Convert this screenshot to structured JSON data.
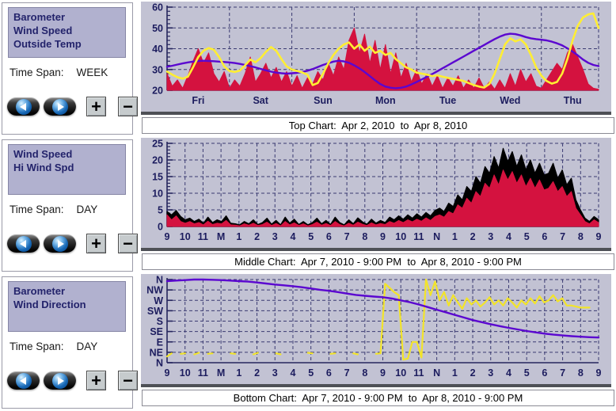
{
  "colors": {
    "chart_bg": "#c2c2d3",
    "axis": "#26265e",
    "grid": "#3b3b72",
    "tick_text": "#1c1c5e",
    "barometer_purple": "#5b07d0",
    "outside_temp_yellow": "#ffee33",
    "wind_speed_red": "#d4123f",
    "hi_wind_black": "#000000",
    "wind_dir_yellow": "#f2e42a",
    "legend_bg": "#b1b1cf"
  },
  "controls": {
    "zoom_in_label": "+",
    "zoom_out_label": "−"
  },
  "panels": [
    {
      "legend": [
        "Barometer",
        "Wind Speed",
        "Outside Temp"
      ],
      "time_span_label": "Time Span:",
      "time_span_value": "WEEK"
    },
    {
      "legend": [
        "Wind Speed",
        "Hi Wind Spd"
      ],
      "time_span_label": "Time Span:",
      "time_span_value": "DAY"
    },
    {
      "legend": [
        "Barometer",
        "Wind Direction"
      ],
      "time_span_label": "Time Span:",
      "time_span_value": "DAY"
    }
  ],
  "chart_data": [
    {
      "type": "line",
      "caption": "Top Chart:  Apr 2, 2010  to  Apr 8, 2010",
      "xlim": [
        0,
        166
      ],
      "ylim": [
        20,
        60
      ],
      "y_minor_step": 2,
      "yticks": [
        {
          "v": 20,
          "label": "20"
        },
        {
          "v": 30,
          "label": "30"
        },
        {
          "v": 40,
          "label": "40"
        },
        {
          "v": 50,
          "label": "50"
        },
        {
          "v": 60,
          "label": "60"
        }
      ],
      "xticks": [
        {
          "v": 12,
          "label": "Fri"
        },
        {
          "v": 36,
          "label": "Sat"
        },
        {
          "v": 60,
          "label": "Sun"
        },
        {
          "v": 84,
          "label": "Mon"
        },
        {
          "v": 108,
          "label": "Tue"
        },
        {
          "v": 132,
          "label": "Wed"
        },
        {
          "v": 156,
          "label": "Thu"
        }
      ],
      "vgrid": [
        24,
        48,
        72,
        96,
        120,
        144,
        166
      ],
      "series": [
        {
          "name": "Wind Speed",
          "color": "#d4123f",
          "fill": true,
          "width": 1,
          "values": [
            28,
            22,
            25,
            21,
            27,
            34,
            40,
            33,
            38,
            28,
            24,
            29,
            21,
            25,
            22,
            28,
            36,
            24,
            28,
            33,
            26,
            31,
            24,
            29,
            22,
            27,
            21,
            26,
            23,
            29,
            25,
            33,
            27,
            36,
            30,
            44,
            50,
            38,
            47,
            33,
            44,
            30,
            42,
            28,
            38,
            26,
            33,
            24,
            30,
            23,
            28,
            22,
            27,
            21,
            26,
            22,
            27,
            21,
            25,
            21,
            26,
            21,
            24,
            20.5,
            25,
            21,
            28,
            22,
            30,
            24,
            28,
            22,
            21,
            25,
            29,
            33,
            30,
            38,
            42,
            36,
            30,
            23,
            21,
            20.5
          ]
        },
        {
          "name": "Barometer",
          "color": "#5b07d0",
          "fill": false,
          "width": 2.4,
          "values": [
            31.3,
            31.8,
            32.4,
            32.9,
            33.4,
            33.8,
            34.1,
            34.2,
            34.1,
            34.0,
            33.8,
            33.6,
            33.4,
            33.1,
            32.7,
            32.2,
            31.6,
            31.0,
            30.3,
            29.6,
            29.0,
            28.5,
            28.2,
            28.0,
            28.2,
            28.4,
            28.8,
            29.4,
            30.2,
            31.2,
            32.2,
            33.0,
            33.8,
            34.2,
            33.9,
            33.2,
            32.0,
            30.5,
            28.8,
            26.8,
            24.8,
            23.0,
            21.8,
            21.2,
            21.0,
            21.2,
            21.8,
            22.8,
            24.0,
            25.2,
            26.5,
            27.8,
            29.2,
            30.6,
            32.0,
            33.4,
            34.8,
            36.2,
            37.6,
            39.0,
            40.4,
            41.8,
            43.2,
            44.6,
            45.8,
            46.8,
            47.2,
            47.0,
            46.4,
            45.6,
            45.0,
            44.6,
            44.3,
            44.0,
            43.4,
            42.6,
            41.6,
            40.2,
            38.6,
            36.8,
            34.8,
            33.2,
            32.2,
            31.6
          ]
        },
        {
          "name": "Outside Temp",
          "color": "#ffee33",
          "fill": false,
          "width": 2.6,
          "values": [
            29.0,
            27.5,
            26.3,
            25.6,
            26.5,
            31.0,
            36.0,
            39.0,
            40.3,
            39.5,
            36.0,
            31.5,
            29.3,
            28.8,
            29.5,
            32.0,
            34.8,
            33.5,
            35.5,
            38.5,
            40.8,
            39.0,
            35.0,
            31.5,
            30.0,
            29.3,
            28.6,
            27.5,
            22.5,
            23.5,
            28.0,
            33.0,
            37.0,
            40.0,
            42.0,
            43.0,
            40.0,
            42.0,
            39.0,
            41.0,
            38.0,
            39.0,
            37.0,
            38.0,
            35.0,
            33.0,
            31.0,
            30.0,
            28.5,
            28.0,
            27.5,
            26.8,
            27.2,
            26.5,
            26.0,
            25.5,
            25.0,
            24.5,
            23.5,
            22.5,
            21.8,
            21.3,
            23.0,
            28.0,
            35.0,
            42.0,
            45.0,
            43.5,
            44.5,
            42.0,
            37.0,
            31.0,
            27.0,
            24.5,
            23.2,
            24.0,
            28.0,
            35.0,
            44.0,
            51.0,
            55.0,
            56.5,
            57.0,
            50.0
          ]
        }
      ]
    },
    {
      "type": "line",
      "caption": "Middle Chart:  Apr 7, 2010 - 9:00 PM  to  Apr 8, 2010 - 9:00 PM",
      "xlim": [
        0,
        24
      ],
      "ylim": [
        0,
        25
      ],
      "y_minor_step": 1,
      "yticks": [
        {
          "v": 0,
          "label": "0"
        },
        {
          "v": 5,
          "label": "5"
        },
        {
          "v": 10,
          "label": "10"
        },
        {
          "v": 15,
          "label": "15"
        },
        {
          "v": 20,
          "label": "20"
        },
        {
          "v": 25,
          "label": "25"
        }
      ],
      "xticks": [
        {
          "v": 0,
          "label": "9"
        },
        {
          "v": 1,
          "label": "10"
        },
        {
          "v": 2,
          "label": "11"
        },
        {
          "v": 3,
          "label": "M"
        },
        {
          "v": 4,
          "label": "1"
        },
        {
          "v": 5,
          "label": "2"
        },
        {
          "v": 6,
          "label": "3"
        },
        {
          "v": 7,
          "label": "4"
        },
        {
          "v": 8,
          "label": "5"
        },
        {
          "v": 9,
          "label": "6"
        },
        {
          "v": 10,
          "label": "7"
        },
        {
          "v": 11,
          "label": "8"
        },
        {
          "v": 12,
          "label": "9"
        },
        {
          "v": 13,
          "label": "10"
        },
        {
          "v": 14,
          "label": "11"
        },
        {
          "v": 15,
          "label": "N"
        },
        {
          "v": 16,
          "label": "1"
        },
        {
          "v": 17,
          "label": "2"
        },
        {
          "v": 18,
          "label": "3"
        },
        {
          "v": 19,
          "label": "4"
        },
        {
          "v": 20,
          "label": "5"
        },
        {
          "v": 21,
          "label": "6"
        },
        {
          "v": 22,
          "label": "7"
        },
        {
          "v": 23,
          "label": "8"
        },
        {
          "v": 24,
          "label": "9"
        }
      ],
      "vgrid": [
        1,
        2,
        3,
        4,
        5,
        6,
        7,
        8,
        9,
        10,
        11,
        12,
        13,
        14,
        15,
        16,
        17,
        18,
        19,
        20,
        21,
        22,
        23,
        24
      ],
      "series": [
        {
          "name": "Hi Wind Spd",
          "color": "#000000",
          "fill": true,
          "width": 1.2,
          "values": [
            4.5,
            3.5,
            4.8,
            3.0,
            2.0,
            2.5,
            1.5,
            2.2,
            1.0,
            2.8,
            1.2,
            2.0,
            1.5,
            3.2,
            1.0,
            0.8,
            0.5,
            1.5,
            0.8,
            2.0,
            0.6,
            1.2,
            2.5,
            0.7,
            1.8,
            0.5,
            2.8,
            1.0,
            2.2,
            0.6,
            1.5,
            0.5,
            1.2,
            2.5,
            0.8,
            1.8,
            0.6,
            2.8,
            1.2,
            0.5,
            2.0,
            0.8,
            2.6,
            1.4,
            0.7,
            2.2,
            1.0,
            1.8,
            1.2,
            2.8,
            2.0,
            3.2,
            2.2,
            3.5,
            2.5,
            3.8,
            2.8,
            4.2,
            3.2,
            4.8,
            5.5,
            4.5,
            7.0,
            6.0,
            9.5,
            8.0,
            12.0,
            10.5,
            15.0,
            13.0,
            18.0,
            16.0,
            21.0,
            17.5,
            23.5,
            19.5,
            22.5,
            18.0,
            21.5,
            17.0,
            20.0,
            16.0,
            19.0,
            15.5,
            16.0,
            19.0,
            14.5,
            17.0,
            12.5,
            14.5,
            8.0,
            5.0,
            2.5,
            1.5,
            3.0,
            2.0
          ]
        },
        {
          "name": "Wind Speed",
          "color": "#d4123f",
          "fill": true,
          "width": 1,
          "values": [
            3.5,
            2.0,
            3.2,
            1.5,
            1.0,
            1.5,
            0.8,
            1.2,
            0.5,
            1.6,
            0.6,
            1.0,
            0.8,
            1.8,
            0.5,
            0.4,
            0.2,
            0.8,
            0.4,
            1.0,
            0.3,
            0.6,
            1.3,
            0.3,
            0.9,
            0.2,
            1.5,
            0.5,
            1.1,
            0.3,
            0.8,
            0.2,
            0.6,
            1.3,
            0.4,
            0.9,
            0.3,
            1.5,
            0.6,
            0.2,
            1.0,
            0.4,
            1.3,
            0.7,
            0.3,
            1.1,
            0.5,
            0.9,
            0.6,
            1.5,
            1.0,
            1.8,
            1.2,
            2.0,
            1.4,
            2.2,
            1.6,
            2.6,
            1.8,
            3.0,
            3.5,
            2.8,
            4.5,
            3.8,
            6.5,
            5.5,
            8.5,
            7.0,
            10.5,
            9.0,
            13.0,
            11.5,
            15.5,
            12.5,
            17.0,
            14.0,
            16.5,
            13.0,
            15.5,
            12.0,
            14.5,
            11.5,
            14.0,
            11.0,
            11.5,
            13.5,
            10.5,
            12.0,
            9.0,
            10.5,
            5.5,
            3.5,
            1.5,
            0.8,
            2.0,
            1.2
          ]
        }
      ]
    },
    {
      "type": "line",
      "caption": "Bottom Chart:  Apr 7, 2010 - 9:00 PM  to  Apr 8, 2010 - 9:00 PM",
      "xlim": [
        0,
        24
      ],
      "ylim": [
        0,
        8
      ],
      "y_minor_step": 0,
      "yticks": [
        {
          "v": 0,
          "label": "N"
        },
        {
          "v": 1,
          "label": "NE"
        },
        {
          "v": 2,
          "label": "E"
        },
        {
          "v": 3,
          "label": "SE"
        },
        {
          "v": 4,
          "label": "S"
        },
        {
          "v": 5,
          "label": "SW"
        },
        {
          "v": 6,
          "label": "W"
        },
        {
          "v": 7,
          "label": "NW"
        },
        {
          "v": 8,
          "label": "N"
        }
      ],
      "xticks": [
        {
          "v": 0,
          "label": "9"
        },
        {
          "v": 1,
          "label": "10"
        },
        {
          "v": 2,
          "label": "11"
        },
        {
          "v": 3,
          "label": "M"
        },
        {
          "v": 4,
          "label": "1"
        },
        {
          "v": 5,
          "label": "2"
        },
        {
          "v": 6,
          "label": "3"
        },
        {
          "v": 7,
          "label": "4"
        },
        {
          "v": 8,
          "label": "5"
        },
        {
          "v": 9,
          "label": "6"
        },
        {
          "v": 10,
          "label": "7"
        },
        {
          "v": 11,
          "label": "8"
        },
        {
          "v": 12,
          "label": "9"
        },
        {
          "v": 13,
          "label": "10"
        },
        {
          "v": 14,
          "label": "11"
        },
        {
          "v": 15,
          "label": "N"
        },
        {
          "v": 16,
          "label": "1"
        },
        {
          "v": 17,
          "label": "2"
        },
        {
          "v": 18,
          "label": "3"
        },
        {
          "v": 19,
          "label": "4"
        },
        {
          "v": 20,
          "label": "5"
        },
        {
          "v": 21,
          "label": "6"
        },
        {
          "v": 22,
          "label": "7"
        },
        {
          "v": 23,
          "label": "8"
        },
        {
          "v": 24,
          "label": "9"
        }
      ],
      "vgrid": [
        1,
        2,
        3,
        4,
        5,
        6,
        7,
        8,
        9,
        10,
        11,
        12,
        13,
        14,
        15,
        16,
        17,
        18,
        19,
        20,
        21,
        22,
        23,
        24
      ],
      "series": [
        {
          "name": "Wind Direction",
          "color": "#f2e42a",
          "fill": false,
          "width": 2.2,
          "values": [
            0.6,
            0.9,
            null,
            0.85,
            0.9,
            null,
            0.8,
            0.95,
            null,
            0.85,
            0.9,
            null,
            0.8,
            null,
            0.9,
            0.85,
            null,
            0.9,
            null,
            0.8,
            0.95,
            null,
            0.85,
            null,
            0.9,
            0.8,
            null,
            0.9,
            null,
            0.85,
            null,
            0.95,
            0.9,
            null,
            0.8,
            null,
            0.85,
            0.9,
            null,
            0.85,
            null,
            0.9,
            0.8,
            null,
            0.9,
            null,
            0.85,
            0.9,
            7.6,
            7.2,
            6.8,
            6.5,
            0.3,
            0.4,
            2.0,
            2.0,
            0.5,
            8.0,
            6.5,
            7.8,
            6.0,
            6.8,
            5.5,
            6.5,
            5.8,
            5.2,
            6.2,
            5.6,
            6.0,
            5.4,
            5.8,
            6.3,
            5.6,
            6.0,
            5.5,
            6.2,
            5.8,
            5.3,
            6.0,
            5.6,
            6.2,
            5.7,
            6.4,
            5.8,
            6.0,
            6.5,
            5.9,
            6.2,
            5.5,
            5.5,
            5.4,
            5.3,
            5.3,
            5.3,
            null,
            null
          ]
        },
        {
          "name": "Barometer",
          "color": "#5b07d0",
          "fill": false,
          "width": 2.4,
          "values": [
            7.85,
            7.9,
            7.95,
            8.0,
            8.0,
            7.98,
            7.95,
            7.9,
            7.85,
            7.8,
            7.72,
            7.62,
            7.52,
            7.44,
            7.36,
            7.26,
            7.14,
            7.02,
            6.92,
            6.8,
            6.65,
            6.52,
            6.44,
            6.36,
            6.3,
            6.18,
            6.0,
            5.82,
            5.6,
            5.35,
            5.1,
            4.85,
            4.6,
            4.35,
            4.1,
            3.9,
            3.7,
            3.52,
            3.35,
            3.2,
            3.05,
            2.92,
            2.8,
            2.7,
            2.62,
            2.55,
            2.5,
            2.45,
            2.42
          ]
        }
      ]
    }
  ]
}
